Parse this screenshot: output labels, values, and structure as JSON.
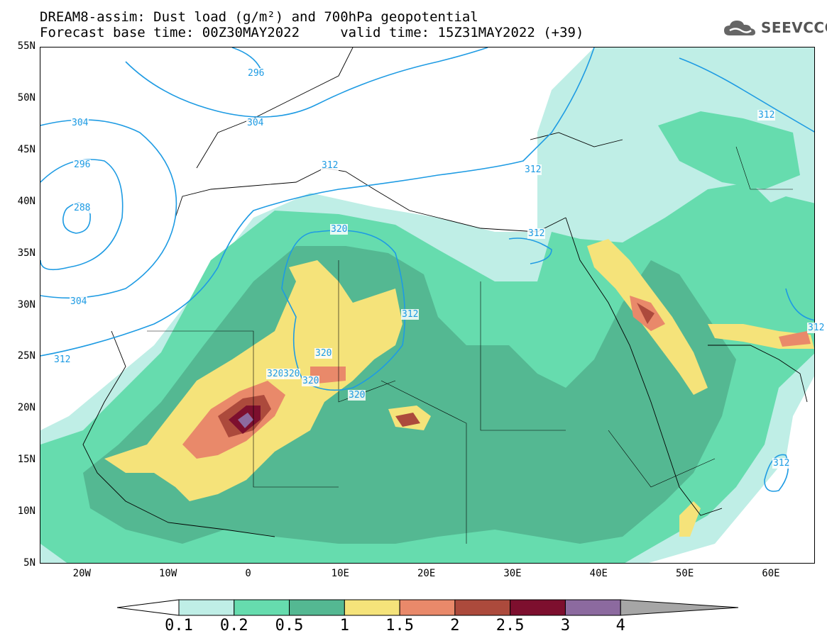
{
  "title": {
    "line1": "DREAM8-assim: Dust load (g/m²) and 700hPa geopotential",
    "line2": "Forecast base time: 00Z30MAY2022     valid time: 15Z31MAY2022 (+39)"
  },
  "logo": {
    "text": "SEEVCCC",
    "icon": "cloud-icon"
  },
  "axes": {
    "lat_labels": [
      "55N",
      "50N",
      "45N",
      "40N",
      "35N",
      "30N",
      "25N",
      "20N",
      "15N",
      "10N",
      "5N"
    ],
    "lon_labels": [
      "20W",
      "10W",
      "0",
      "10E",
      "20E",
      "30E",
      "40E",
      "50E",
      "60E"
    ],
    "lat_range": [
      5,
      55
    ],
    "lon_range": [
      -25,
      65
    ]
  },
  "colorbar": {
    "levels": [
      "0.1",
      "0.2",
      "0.5",
      "1",
      "1.5",
      "2",
      "2.5",
      "3",
      "4"
    ],
    "colors": [
      "#bfeee6",
      "#66dcae",
      "#54b892",
      "#f5e37a",
      "#e9896a",
      "#ac4a3c",
      "#7d0f2e",
      "#8c6a9f",
      "#a6a6a6"
    ]
  },
  "contours": {
    "labels": [
      "296",
      "304",
      "304",
      "296",
      "288",
      "304",
      "312",
      "312",
      "312",
      "312",
      "312",
      "320",
      "320",
      "320",
      "320",
      "320",
      "312",
      "312",
      "320",
      "312"
    ]
  }
}
